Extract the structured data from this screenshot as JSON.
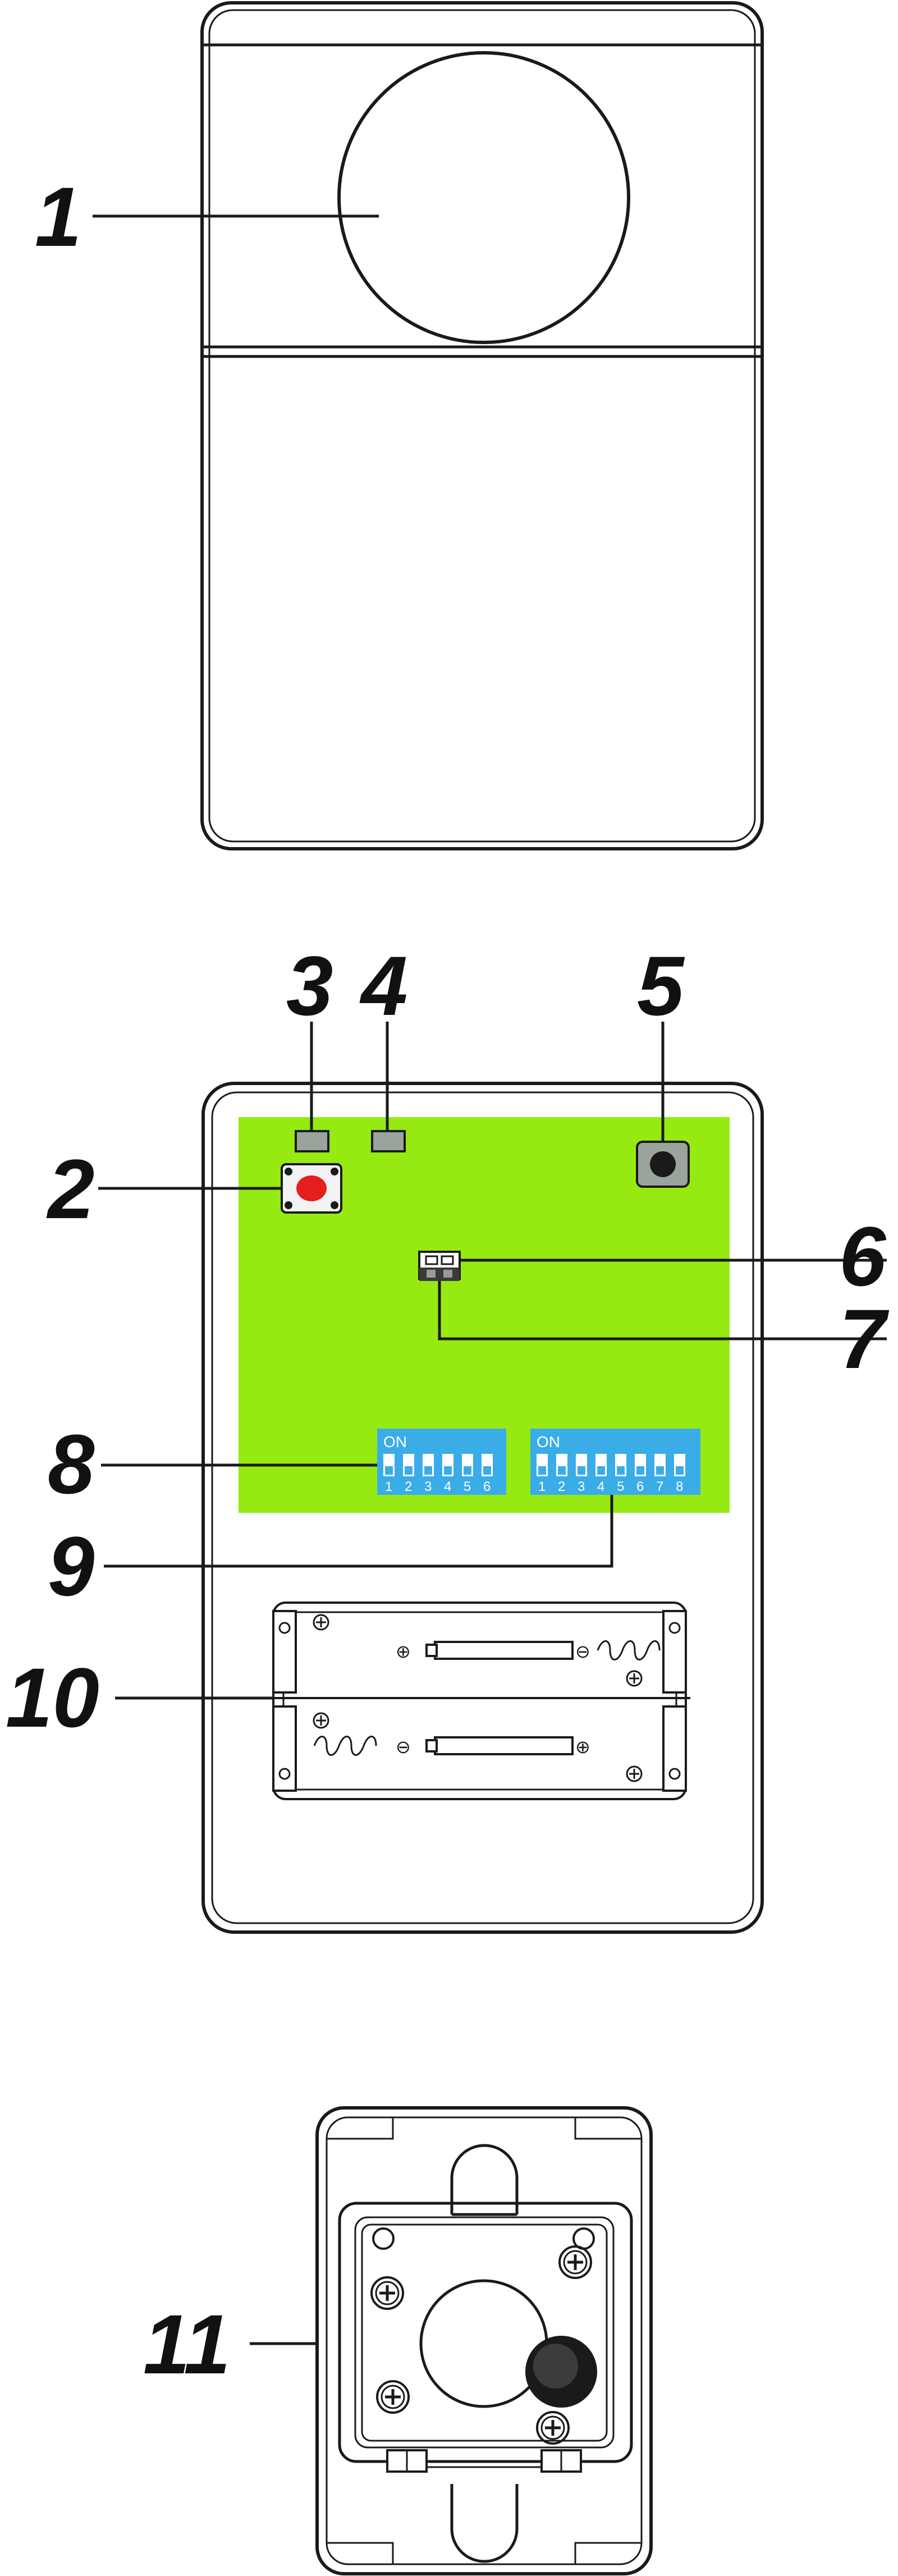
{
  "callouts": {
    "c1": "1",
    "c2": "2",
    "c3": "3",
    "c4": "4",
    "c5": "5",
    "c6": "6",
    "c7": "7",
    "c8": "8",
    "c9": "9",
    "c10": "10",
    "c11": "11"
  },
  "dip_switch_6": {
    "on_label": "ON",
    "numbers": [
      "1",
      "2",
      "3",
      "4",
      "5",
      "6"
    ]
  },
  "dip_switch_8": {
    "on_label": "ON",
    "numbers": [
      "1",
      "2",
      "3",
      "4",
      "5",
      "6",
      "7",
      "8"
    ]
  },
  "battery_holder": {
    "plus": "⊕",
    "minus": "⊖"
  },
  "colors": {
    "outline": "#1a1a1a",
    "pcb_green": "#96ea11",
    "dip_blue": "#3aace8",
    "button_red": "#e61e1e",
    "led_grey": "#9aa39c"
  }
}
